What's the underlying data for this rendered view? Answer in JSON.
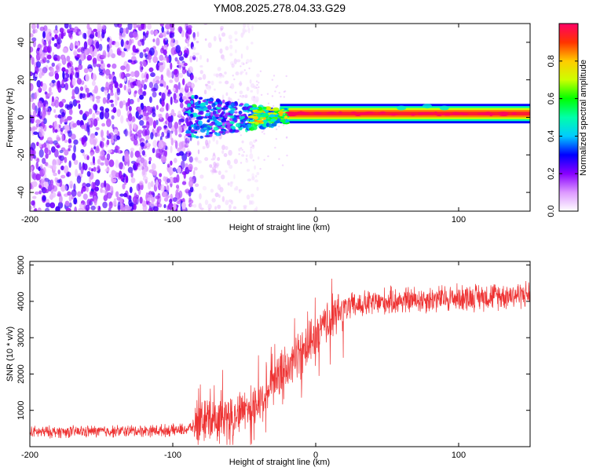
{
  "title": "YM08.2025.278.04.33.G29",
  "chart_data": [
    {
      "type": "heatmap",
      "xlabel": "Height of straight line (km)",
      "ylabel": "Frequency (Hz)",
      "xlim": [
        -200,
        150
      ],
      "ylim": [
        -50,
        50
      ],
      "xticks": [
        -200,
        -100,
        0,
        100
      ],
      "xtick_labels": [
        "-200",
        "-100",
        "0",
        "100"
      ],
      "yticks": [
        -40,
        -20,
        0,
        20,
        40
      ],
      "ytick_labels": [
        "-40",
        "-20",
        "0",
        "20",
        "40"
      ],
      "colorbar": {
        "label": "Normalized spectral amplitude",
        "range": [
          0,
          1
        ],
        "ticks": [
          0,
          0.2,
          0.4,
          0.6,
          0.8
        ],
        "tick_labels": [
          "0.0",
          "0.2",
          "0.4",
          "0.6",
          "0.8"
        ]
      },
      "description_regions": [
        {
          "x_range": [
            -200,
            -90
          ],
          "frequency": "broadband",
          "amplitude": "low (0.1-0.25), scattered speckle"
        },
        {
          "x_range": [
            -90,
            -45
          ],
          "frequency": "broadband fading",
          "amplitude": "very low"
        },
        {
          "x_range": [
            -90,
            -30
          ],
          "frequency_center": 0,
          "amplitude": "0.2-0.5"
        },
        {
          "x_range": [
            -30,
            150
          ],
          "frequency_center": 2,
          "amplitude": "0.8-1.0 narrow band"
        }
      ]
    },
    {
      "type": "line",
      "xlabel": "Height of straight line (km)",
      "ylabel": "SNR (10 * v/v)",
      "xlim": [
        -200,
        150
      ],
      "ylim": [
        0,
        5100
      ],
      "xticks": [
        -200,
        -100,
        0,
        100
      ],
      "xtick_labels": [
        "-200",
        "-100",
        "0",
        "100"
      ],
      "yticks": [
        1000,
        2000,
        3000,
        4000,
        5000
      ],
      "ytick_labels": [
        "1000",
        "2000",
        "3000",
        "4000",
        "5000"
      ],
      "series_color": "#ee3333",
      "trend": [
        {
          "x": -200,
          "y": 400
        },
        {
          "x": -150,
          "y": 420
        },
        {
          "x": -100,
          "y": 450
        },
        {
          "x": -90,
          "y": 480
        },
        {
          "x": -80,
          "y": 650
        },
        {
          "x": -60,
          "y": 850
        },
        {
          "x": -40,
          "y": 1200
        },
        {
          "x": -30,
          "y": 1700
        },
        {
          "x": -20,
          "y": 2200
        },
        {
          "x": -10,
          "y": 2600
        },
        {
          "x": 0,
          "y": 3000
        },
        {
          "x": 10,
          "y": 3500
        },
        {
          "x": 20,
          "y": 3800
        },
        {
          "x": 30,
          "y": 3900
        },
        {
          "x": 50,
          "y": 4000
        },
        {
          "x": 100,
          "y": 4100
        },
        {
          "x": 150,
          "y": 4200
        }
      ]
    }
  ]
}
